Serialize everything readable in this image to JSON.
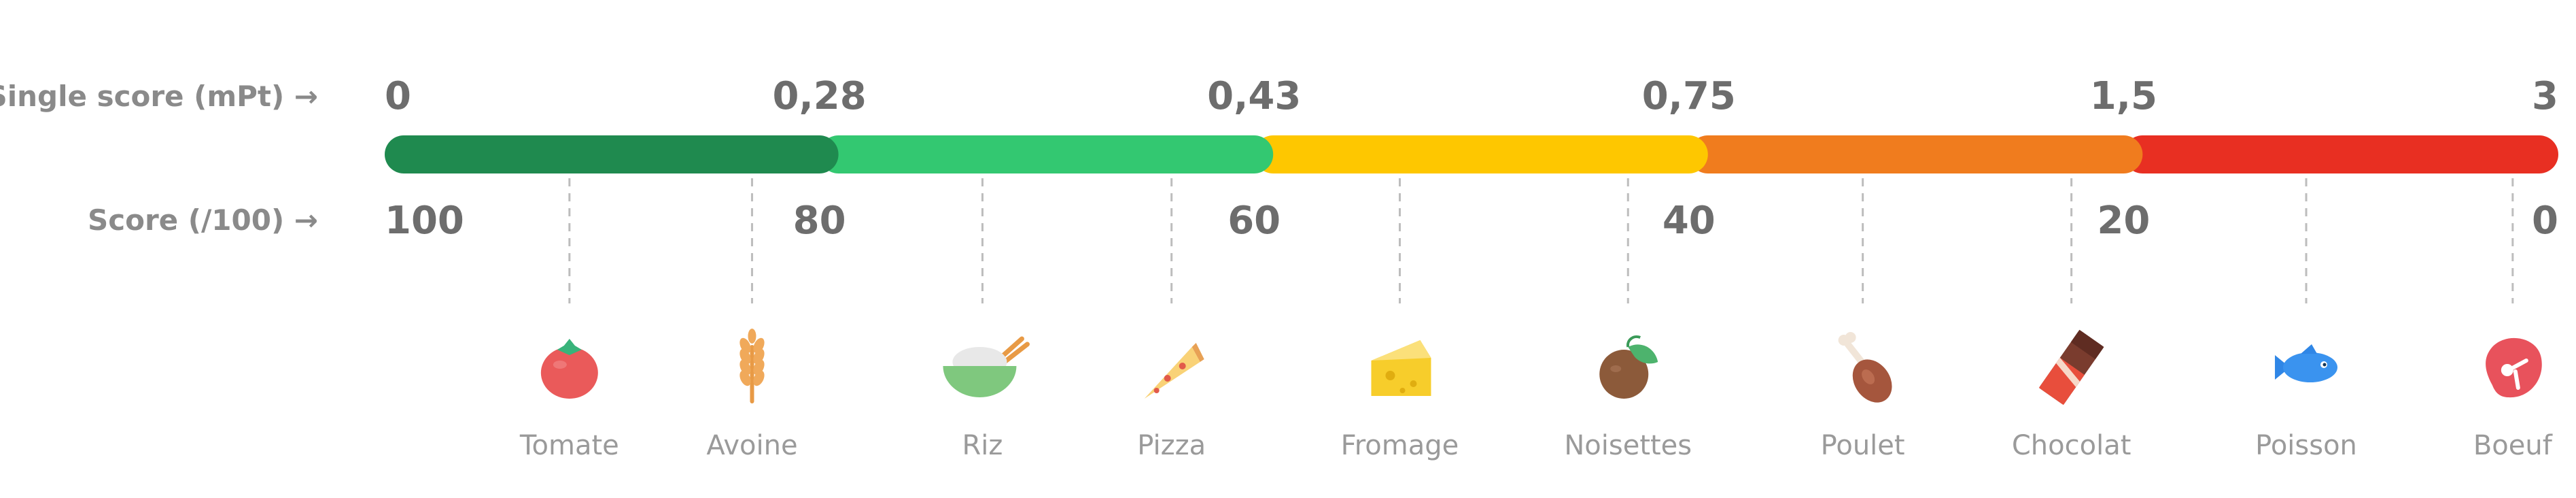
{
  "labels": {
    "single_score": "Single score (mPt) →",
    "score100": "Score (/100)  →"
  },
  "single_score_ticks": [
    "0",
    "0,28",
    "0,43",
    "0,75",
    "1,5",
    "3"
  ],
  "score100_ticks": [
    "100",
    "80",
    "60",
    "40",
    "20",
    "0"
  ],
  "segments": [
    {
      "name": "dark-green",
      "color": "#1f8a4f"
    },
    {
      "name": "green",
      "color": "#33c871"
    },
    {
      "name": "yellow",
      "color": "#fec700"
    },
    {
      "name": "orange",
      "color": "#f07c1e"
    },
    {
      "name": "red",
      "color": "#e82f22"
    }
  ],
  "foods": [
    {
      "name": "Tomate",
      "icon": "tomato-icon",
      "score100": 91.5
    },
    {
      "name": "Avoine",
      "icon": "oat-icon",
      "score100": 83.1
    },
    {
      "name": "Riz",
      "icon": "rice-bowl-icon",
      "score100": 72.5
    },
    {
      "name": "Pizza",
      "icon": "pizza-icon",
      "score100": 63.8
    },
    {
      "name": "Fromage",
      "icon": "cheese-icon",
      "score100": 53.3
    },
    {
      "name": "Noisettes",
      "icon": "hazelnut-icon",
      "score100": 42.8
    },
    {
      "name": "Poulet",
      "icon": "chicken-leg-icon",
      "score100": 32.0
    },
    {
      "name": "Chocolat",
      "icon": "chocolate-icon",
      "score100": 22.4
    },
    {
      "name": "Poisson",
      "icon": "fish-icon",
      "score100": 11.6
    },
    {
      "name": "Boeuf",
      "icon": "steak-icon",
      "score100": 2.1
    }
  ]
}
